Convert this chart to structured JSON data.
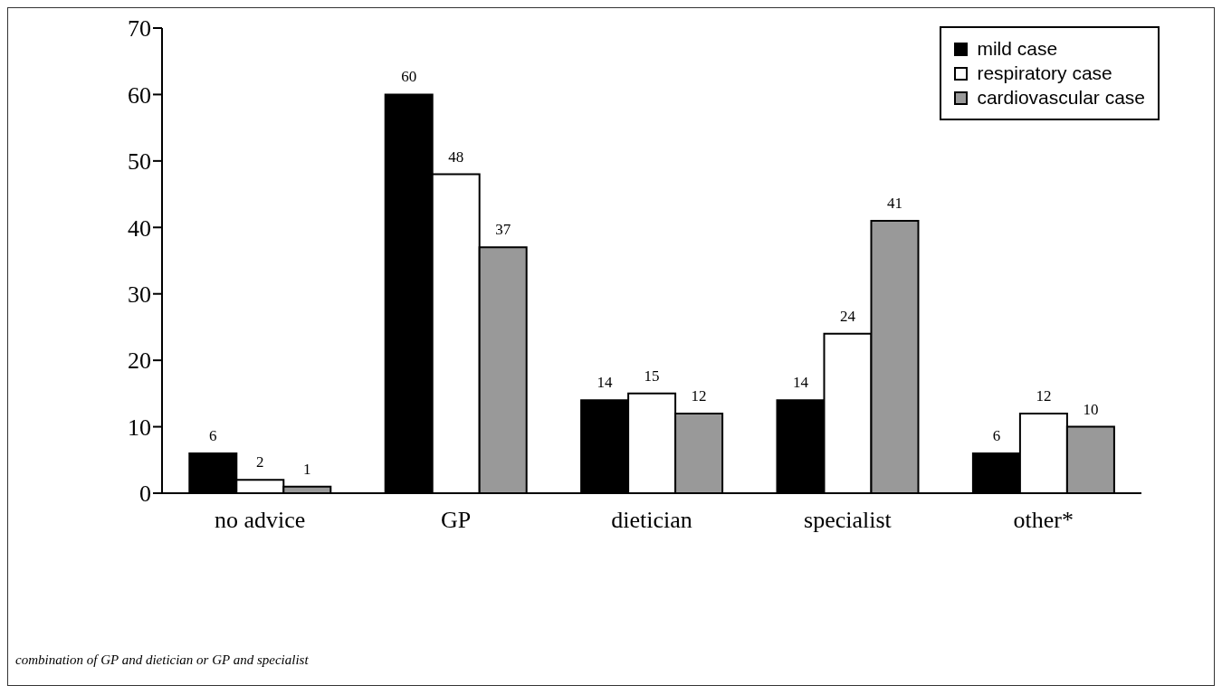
{
  "chart_data": {
    "type": "bar",
    "categories": [
      "no advice",
      "GP",
      "dietician",
      "specialist",
      "other*"
    ],
    "series": [
      {
        "name": "mild case",
        "color": "#000000",
        "values": [
          6,
          60,
          14,
          14,
          6
        ]
      },
      {
        "name": "respiratory case",
        "color": "#ffffff",
        "values": [
          2,
          48,
          15,
          24,
          12
        ]
      },
      {
        "name": "cardiovascular case",
        "color": "#999999",
        "values": [
          1,
          37,
          12,
          41,
          10
        ]
      }
    ],
    "ylim": [
      0,
      70
    ],
    "yticks": [
      0,
      10,
      20,
      30,
      40,
      50,
      60,
      70
    ],
    "grid": false,
    "legend": "top right",
    "data_labels": true,
    "annotations": [
      "combination of GP and dietician or GP and specialist"
    ]
  }
}
